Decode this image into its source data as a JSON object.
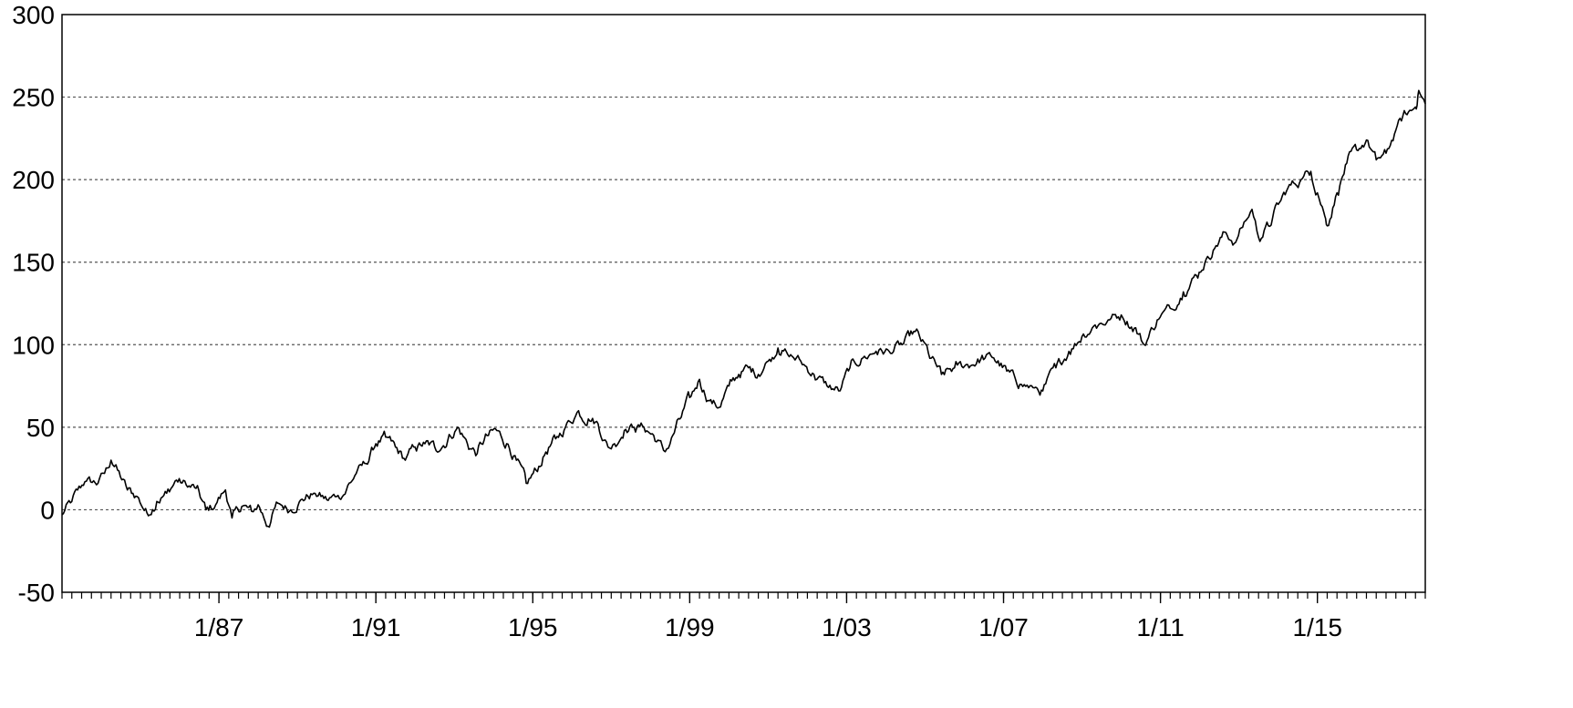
{
  "chart_data": {
    "type": "line",
    "title": "",
    "xlabel": "",
    "ylabel": "",
    "ylim": [
      -50,
      300
    ],
    "xlim": [
      "1983-01",
      "2017-10"
    ],
    "y_ticks": [
      -50,
      0,
      50,
      100,
      150,
      200,
      250,
      300
    ],
    "x_ticks": [
      {
        "label": "1/87",
        "date": "1987-01"
      },
      {
        "label": "1/91",
        "date": "1991-01"
      },
      {
        "label": "1/95",
        "date": "1995-01"
      },
      {
        "label": "1/99",
        "date": "1999-01"
      },
      {
        "label": "1/03",
        "date": "2003-01"
      },
      {
        "label": "1/07",
        "date": "2007-01"
      },
      {
        "label": "1/11",
        "date": "2011-01"
      },
      {
        "label": "1/15",
        "date": "2015-01"
      }
    ],
    "grid": {
      "horizontal": true,
      "style": "dotted"
    },
    "legend": "none",
    "line_color": "#000000",
    "series": [
      {
        "name": "",
        "points": [
          [
            "1983-01",
            -3
          ],
          [
            "1983-04",
            5
          ],
          [
            "1983-08",
            17
          ],
          [
            "1983-12",
            16
          ],
          [
            "1984-02",
            22
          ],
          [
            "1984-04",
            30
          ],
          [
            "1984-06",
            24
          ],
          [
            "1984-09",
            12
          ],
          [
            "1984-12",
            8
          ],
          [
            "1985-03",
            -2
          ],
          [
            "1985-06",
            5
          ],
          [
            "1985-09",
            10
          ],
          [
            "1985-12",
            18
          ],
          [
            "1986-03",
            15
          ],
          [
            "1986-06",
            13
          ],
          [
            "1986-09",
            0
          ],
          [
            "1986-12",
            3
          ],
          [
            "1987-03",
            12
          ],
          [
            "1987-05",
            -5
          ],
          [
            "1987-08",
            2
          ],
          [
            "1987-11",
            -1
          ],
          [
            "1988-01",
            3
          ],
          [
            "1988-04",
            -10
          ],
          [
            "1988-07",
            4
          ],
          [
            "1988-11",
            0
          ],
          [
            "1989-02",
            6
          ],
          [
            "1989-06",
            10
          ],
          [
            "1989-10",
            6
          ],
          [
            "1990-01",
            8
          ],
          [
            "1990-04",
            12
          ],
          [
            "1990-07",
            22
          ],
          [
            "1990-10",
            28
          ],
          [
            "1991-01",
            40
          ],
          [
            "1991-04",
            44
          ],
          [
            "1991-07",
            38
          ],
          [
            "1991-10",
            30
          ],
          [
            "1992-01",
            38
          ],
          [
            "1992-04",
            40
          ],
          [
            "1992-07",
            38
          ],
          [
            "1992-11",
            42
          ],
          [
            "1993-02",
            50
          ],
          [
            "1993-05",
            40
          ],
          [
            "1993-08",
            34
          ],
          [
            "1993-11",
            45
          ],
          [
            "1994-02",
            48
          ],
          [
            "1994-05",
            40
          ],
          [
            "1994-08",
            30
          ],
          [
            "1994-11",
            16
          ],
          [
            "1995-02",
            24
          ],
          [
            "1995-05",
            35
          ],
          [
            "1995-08",
            43
          ],
          [
            "1995-11",
            50
          ],
          [
            "1996-03",
            60
          ],
          [
            "1996-06",
            55
          ],
          [
            "1996-09",
            52
          ],
          [
            "1996-12",
            38
          ],
          [
            "1997-02",
            40
          ],
          [
            "1997-05",
            48
          ],
          [
            "1997-08",
            50
          ],
          [
            "1997-11",
            50
          ],
          [
            "1998-02",
            45
          ],
          [
            "1998-05",
            36
          ],
          [
            "1998-07",
            40
          ],
          [
            "1998-10",
            55
          ],
          [
            "1999-01",
            68
          ],
          [
            "1999-04",
            79
          ],
          [
            "1999-07",
            66
          ],
          [
            "1999-10",
            62
          ],
          [
            "2000-01",
            75
          ],
          [
            "2000-04",
            82
          ],
          [
            "2000-07",
            86
          ],
          [
            "2000-10",
            82
          ],
          [
            "2001-01",
            90
          ],
          [
            "2001-04",
            98
          ],
          [
            "2001-07",
            94
          ],
          [
            "2001-11",
            90
          ],
          [
            "2002-03",
            82
          ],
          [
            "2002-07",
            75
          ],
          [
            "2002-11",
            72
          ],
          [
            "2003-02",
            86
          ],
          [
            "2003-06",
            92
          ],
          [
            "2003-10",
            96
          ],
          [
            "2004-02",
            96
          ],
          [
            "2004-06",
            100
          ],
          [
            "2004-10",
            108
          ],
          [
            "2005-02",
            95
          ],
          [
            "2005-06",
            82
          ],
          [
            "2005-10",
            86
          ],
          [
            "2006-02",
            88
          ],
          [
            "2006-06",
            91
          ],
          [
            "2006-10",
            92
          ],
          [
            "2007-02",
            84
          ],
          [
            "2007-06",
            76
          ],
          [
            "2007-10",
            74
          ],
          [
            "2008-01",
            72
          ],
          [
            "2008-05",
            86
          ],
          [
            "2008-09",
            96
          ],
          [
            "2009-01",
            105
          ],
          [
            "2009-05",
            112
          ],
          [
            "2009-09",
            115
          ],
          [
            "2010-01",
            118
          ],
          [
            "2010-05",
            110
          ],
          [
            "2010-08",
            100
          ],
          [
            "2010-12",
            115
          ],
          [
            "2011-04",
            122
          ],
          [
            "2011-08",
            132
          ],
          [
            "2011-12",
            142
          ],
          [
            "2012-03",
            152
          ],
          [
            "2012-06",
            160
          ],
          [
            "2012-09",
            168
          ],
          [
            "2012-12",
            162
          ],
          [
            "2013-03",
            175
          ],
          [
            "2013-05",
            182
          ],
          [
            "2013-07",
            165
          ],
          [
            "2013-10",
            172
          ],
          [
            "2014-01",
            185
          ],
          [
            "2014-04",
            195
          ],
          [
            "2014-08",
            200
          ],
          [
            "2014-11",
            205
          ],
          [
            "2015-01",
            192
          ],
          [
            "2015-03",
            180
          ],
          [
            "2015-04",
            172
          ],
          [
            "2015-07",
            192
          ],
          [
            "2015-10",
            210
          ],
          [
            "2016-01",
            218
          ],
          [
            "2016-04",
            224
          ],
          [
            "2016-07",
            212
          ],
          [
            "2016-10",
            216
          ],
          [
            "2017-01",
            230
          ],
          [
            "2017-04",
            240
          ],
          [
            "2017-07",
            244
          ],
          [
            "2017-08",
            254
          ],
          [
            "2017-10",
            246
          ]
        ]
      }
    ]
  }
}
